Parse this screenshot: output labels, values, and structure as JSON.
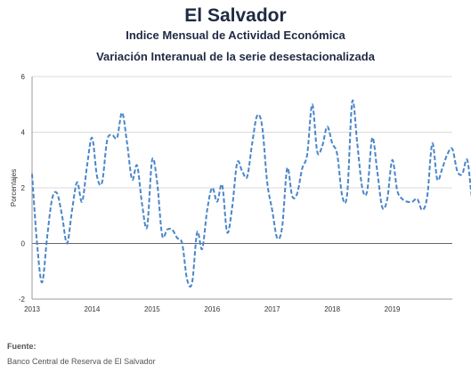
{
  "chart_data": {
    "type": "line",
    "title": "El Salvador",
    "subtitle": "Indice Mensual de  Actividad Económica",
    "subtitle2": "Variación Interanual de la serie desestacionalizada",
    "ylabel": "Porcentajes",
    "xlabel": "",
    "ylim": [
      -2,
      6
    ],
    "yticks": [
      -2,
      0,
      2,
      4,
      6
    ],
    "year_ticks": [
      "2013",
      "2014",
      "2015",
      "2016",
      "2017",
      "2018",
      "2019"
    ],
    "grid": "horizontal",
    "series_color": "#4a86c8",
    "series": [
      {
        "values": [
          2.5,
          0.0,
          -1.4,
          0.2,
          1.6,
          1.8,
          1.0,
          0.0,
          1.2,
          2.2,
          1.5,
          2.8,
          3.8,
          2.4,
          2.2,
          3.7,
          3.9,
          3.8,
          4.7,
          3.6,
          2.3,
          2.8,
          1.4,
          0.6,
          3.0,
          2.2,
          0.3,
          0.5,
          0.5,
          0.2,
          0.0,
          -1.3,
          -1.4,
          0.4,
          -0.2,
          1.2,
          2.0,
          1.5,
          2.1,
          0.4,
          1.3,
          2.9,
          2.6,
          2.4,
          3.6,
          4.6,
          4.2,
          2.2,
          1.2,
          0.2,
          0.6,
          2.7,
          1.7,
          1.8,
          2.7,
          3.2,
          5.0,
          3.3,
          3.5,
          4.2,
          3.6,
          3.2,
          1.7,
          1.8,
          5.1,
          3.6,
          2.0,
          1.9,
          3.8,
          2.6,
          1.3,
          1.6,
          3.0,
          1.9,
          1.6,
          1.5,
          1.5,
          1.6,
          1.2,
          1.7,
          3.6,
          2.3,
          2.7,
          3.2,
          3.4,
          2.6,
          2.5,
          3.0,
          1.6,
          1.7,
          1.6,
          2.3,
          3.3,
          1.3,
          0.9,
          2.4,
          1.8,
          2.1,
          2.8,
          3.1,
          3.3,
          1.4,
          1.7,
          3.2,
          2.1,
          0.8,
          1.0,
          1.8,
          2.1,
          3.5,
          3.5,
          2.2,
          3.1,
          2.6,
          1.1
        ]
      }
    ]
  },
  "footer": {
    "source_label": "Fuente:",
    "source_text": "Banco Central de Reserva de El Salvador"
  }
}
